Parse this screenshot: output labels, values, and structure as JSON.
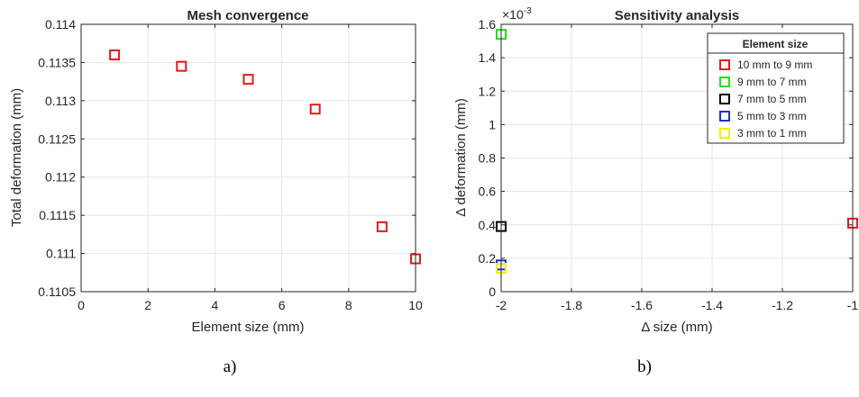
{
  "figure": {
    "caption_a": "a)",
    "caption_b": "b)"
  },
  "chart_data": [
    {
      "type": "scatter",
      "title": "Mesh convergence",
      "xlabel": "Element size (mm)",
      "ylabel": "Total deformation (mm)",
      "xlim": [
        0,
        10
      ],
      "ylim": [
        0.1105,
        0.114
      ],
      "xticks": [
        0,
        2,
        4,
        6,
        8,
        10
      ],
      "yticks": [
        0.1105,
        0.111,
        0.1115,
        0.112,
        0.1125,
        0.113,
        0.1135,
        0.114
      ],
      "ytick_labels": [
        "0.1105",
        "0.111",
        "0.1115",
        "0.112",
        "0.1125",
        "0.113",
        "0.1135",
        "0.114"
      ],
      "grid": true,
      "marker": "square",
      "color": "#e31a1c",
      "points": [
        {
          "x": 1,
          "y": 0.1136
        },
        {
          "x": 3,
          "y": 0.11345
        },
        {
          "x": 5,
          "y": 0.11328
        },
        {
          "x": 7,
          "y": 0.11289
        },
        {
          "x": 9,
          "y": 0.11135
        },
        {
          "x": 10,
          "y": 0.11093
        }
      ]
    },
    {
      "type": "scatter",
      "title": "Sensitivity analysis",
      "xlabel": "Δ size (mm)",
      "ylabel": "Δ deformation (mm)",
      "y_exponent_label": "×10",
      "y_exponent": "-3",
      "xlim": [
        -2,
        -1
      ],
      "ylim": [
        0,
        1.6
      ],
      "xticks": [
        -2,
        -1.8,
        -1.6,
        -1.4,
        -1.2,
        -1
      ],
      "xtick_labels": [
        "-2",
        "-1.8",
        "-1.6",
        "-1.4",
        "-1.2",
        "-1"
      ],
      "yticks": [
        0,
        0.2,
        0.4,
        0.6,
        0.8,
        1,
        1.2,
        1.4,
        1.6
      ],
      "ytick_labels": [
        "0",
        "0.2",
        "0.4",
        "0.6",
        "0.8",
        "1",
        "1.2",
        "1.4",
        "1.6"
      ],
      "grid": true,
      "marker": "square",
      "legend_title": "Element size",
      "legend_position": "top-right",
      "series": [
        {
          "name": "10 mm to 9 mm",
          "color": "#e31a1c",
          "points": [
            {
              "x": -1,
              "y": 0.41
            }
          ]
        },
        {
          "name": "9 mm to 7 mm",
          "color": "#22dd22",
          "points": [
            {
              "x": -2,
              "y": 1.54
            }
          ]
        },
        {
          "name": "7 mm to 5 mm",
          "color": "#000000",
          "points": [
            {
              "x": -2,
              "y": 0.39
            }
          ]
        },
        {
          "name": "5 mm to 3 mm",
          "color": "#1f2fd6",
          "points": [
            {
              "x": -2,
              "y": 0.16
            }
          ]
        },
        {
          "name": "3 mm to 1 mm",
          "color": "#f2f200",
          "points": [
            {
              "x": -2,
              "y": 0.14
            }
          ]
        }
      ]
    }
  ]
}
